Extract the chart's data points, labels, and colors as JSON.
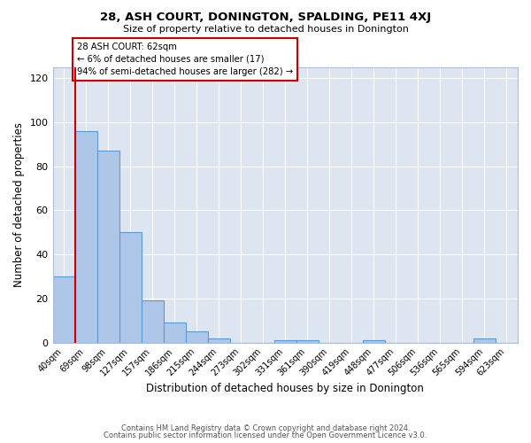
{
  "title": "28, ASH COURT, DONINGTON, SPALDING, PE11 4XJ",
  "subtitle": "Size of property relative to detached houses in Donington",
  "xlabel": "Distribution of detached houses by size in Donington",
  "ylabel": "Number of detached properties",
  "bar_labels": [
    "40sqm",
    "69sqm",
    "98sqm",
    "127sqm",
    "157sqm",
    "186sqm",
    "215sqm",
    "244sqm",
    "273sqm",
    "302sqm",
    "331sqm",
    "361sqm",
    "390sqm",
    "419sqm",
    "448sqm",
    "477sqm",
    "506sqm",
    "536sqm",
    "565sqm",
    "594sqm",
    "623sqm"
  ],
  "bar_values": [
    30,
    96,
    87,
    50,
    19,
    9,
    5,
    2,
    0,
    0,
    1,
    1,
    0,
    0,
    1,
    0,
    0,
    0,
    0,
    2,
    0
  ],
  "bar_color": "#aec6e8",
  "bar_edge_color": "#5b9bd5",
  "marker_line_color": "#cc0000",
  "annotation_lines": [
    "28 ASH COURT: 62sqm",
    "← 6% of detached houses are smaller (17)",
    "94% of semi-detached houses are larger (282) →"
  ],
  "annotation_box_edge_color": "#cc0000",
  "ylim": [
    0,
    125
  ],
  "yticks": [
    0,
    20,
    40,
    60,
    80,
    100,
    120
  ],
  "background_color": "#dde5f0",
  "footer_line1": "Contains HM Land Registry data © Crown copyright and database right 2024.",
  "footer_line2": "Contains public sector information licensed under the Open Government Licence v3.0."
}
